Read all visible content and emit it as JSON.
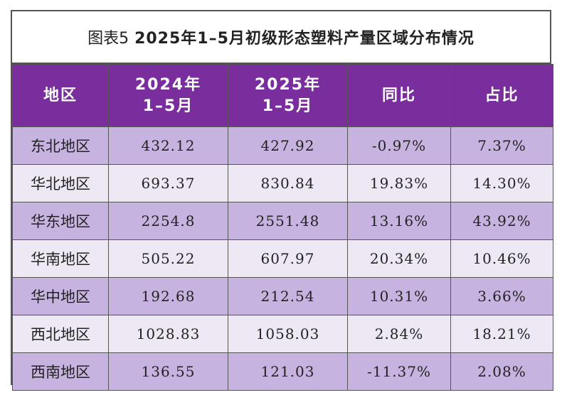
{
  "title": {
    "prefix": "图表5",
    "main": "2025年1–5月初级形态塑料产量区域分布情况"
  },
  "header": {
    "region": "地区",
    "y2024_line1": "2024年",
    "y2024_line2": "1–5月",
    "y2025_line1": "2025年",
    "y2025_line2": "1–5月",
    "yoy": "同比",
    "share": "占比"
  },
  "rows": [
    {
      "region": "东北地区",
      "y2024": "432.12",
      "y2025": "427.92",
      "yoy": "-0.97%",
      "share": "7.37%"
    },
    {
      "region": "华北地区",
      "y2024": "693.37",
      "y2025": "830.84",
      "yoy": "19.83%",
      "share": "14.30%"
    },
    {
      "region": "华东地区",
      "y2024": "2254.8",
      "y2025": "2551.48",
      "yoy": "13.16%",
      "share": "43.92%"
    },
    {
      "region": "华南地区",
      "y2024": "505.22",
      "y2025": "607.97",
      "yoy": "20.34%",
      "share": "10.46%"
    },
    {
      "region": "华中地区",
      "y2024": "192.68",
      "y2025": "212.54",
      "yoy": "10.31%",
      "share": "3.66%"
    },
    {
      "region": "西北地区",
      "y2024": "1028.83",
      "y2025": "1058.03",
      "yoy": "2.84%",
      "share": "18.21%"
    },
    {
      "region": "西南地区",
      "y2024": "136.55",
      "y2025": "121.03",
      "yoy": "-11.37%",
      "share": "2.08%"
    }
  ],
  "colors": {
    "header_bg": "#7a2e9e",
    "row_dark": "#c6b3e0",
    "row_light": "#eee8f5"
  }
}
